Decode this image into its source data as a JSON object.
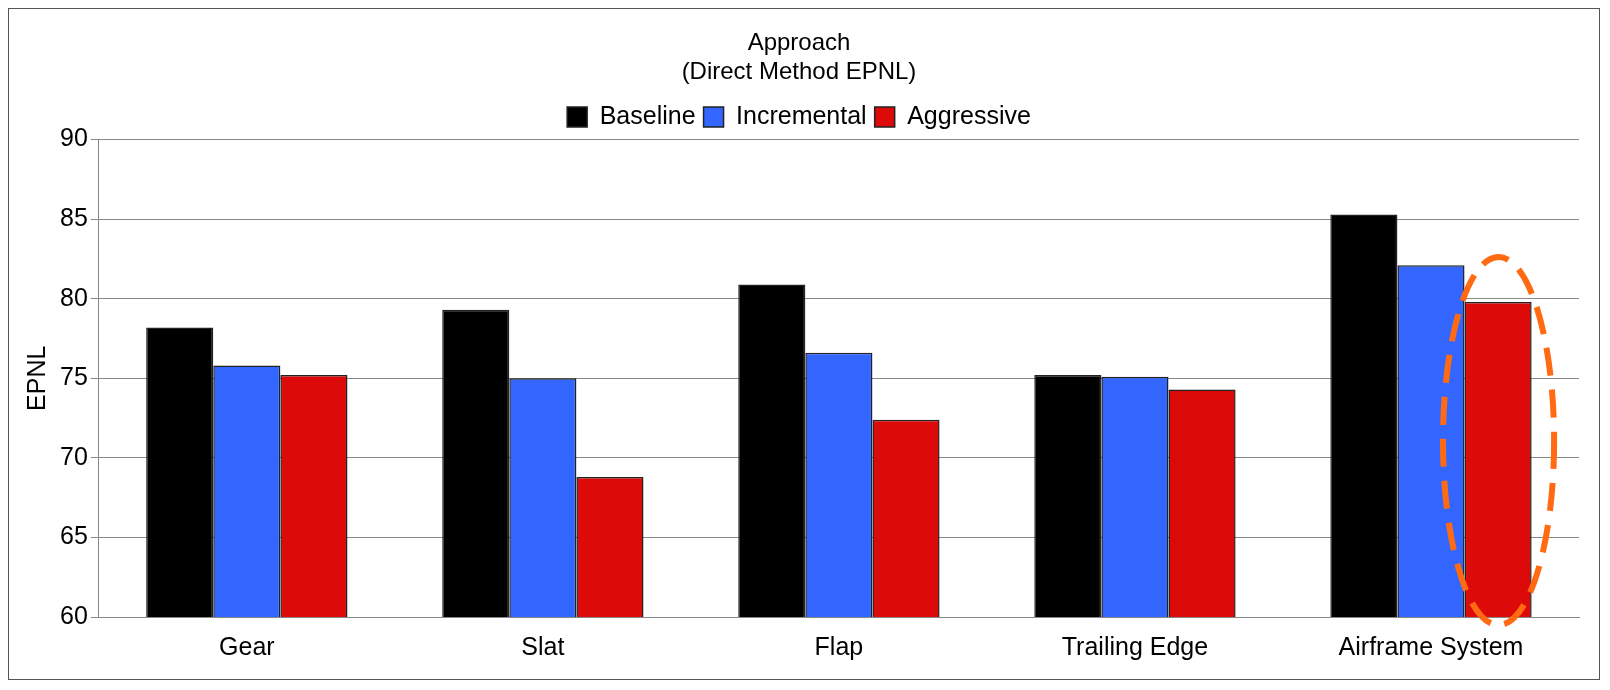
{
  "chart_data": {
    "type": "bar",
    "title": "Approach",
    "subtitle": "(Direct Method EPNL)",
    "ylabel": "EPNL",
    "categories": [
      "Gear",
      "Slat",
      "Flap",
      "Trailing Edge",
      "Airframe System"
    ],
    "series": [
      {
        "name": "Baseline",
        "color": "#000000",
        "values": [
          78.2,
          79.3,
          80.9,
          75.2,
          85.3
        ]
      },
      {
        "name": "Incremental",
        "color": "#3366ff",
        "values": [
          75.8,
          75.0,
          76.6,
          75.1,
          82.1
        ]
      },
      {
        "name": "Aggressive",
        "color": "#dd0a0a",
        "values": [
          75.2,
          68.8,
          72.4,
          74.3,
          79.8
        ]
      }
    ],
    "ylim": [
      60,
      90
    ],
    "yticks": [
      60,
      65,
      70,
      75,
      80,
      85,
      90
    ],
    "grid": "y",
    "legend": "top"
  }
}
